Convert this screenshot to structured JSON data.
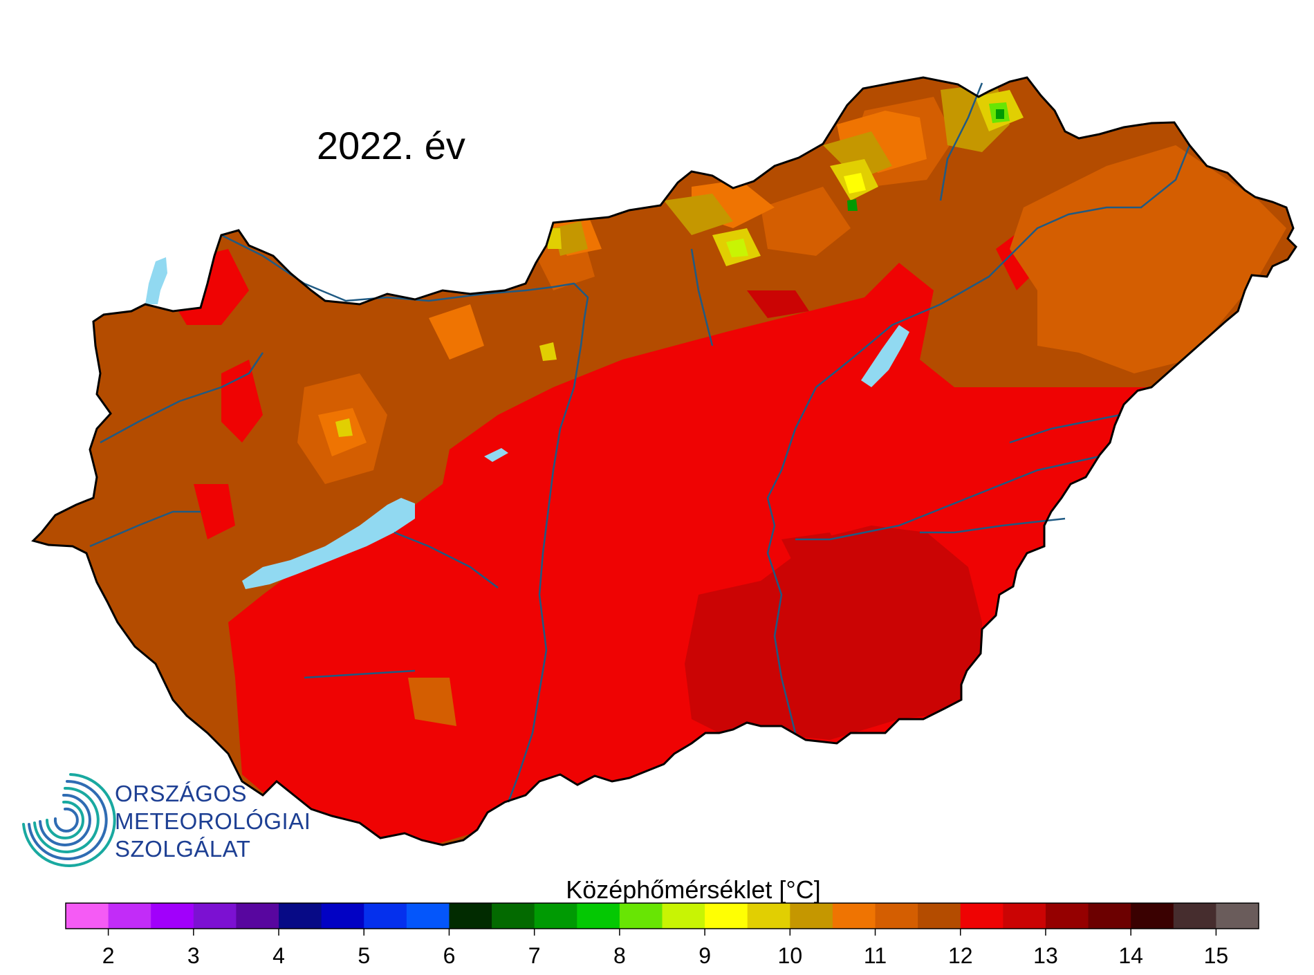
{
  "title": "2022. év",
  "logo": {
    "lines": [
      "ORSZÁGOS",
      "METEOROLÓGIAI",
      "SZOLGÁLAT"
    ],
    "color": "#1d3f93",
    "accent": "#1aa39a"
  },
  "legend": {
    "title": "Középhőmérséklet [°C]",
    "min": 1.5,
    "step": 0.5,
    "colors": [
      "#f55bf5",
      "#c22cf8",
      "#a100fb",
      "#7c11d2",
      "#58069f",
      "#070a86",
      "#0202c4",
      "#0530ed",
      "#0456fb",
      "#012b00",
      "#036a00",
      "#009a03",
      "#04c803",
      "#68e504",
      "#c8f404",
      "#ffff03",
      "#e1cf02",
      "#c59700",
      "#ef7402",
      "#d45e01",
      "#b44c00",
      "#ef0303",
      "#cb0404",
      "#950000",
      "#6c0000",
      "#3a0101",
      "#462d2e",
      "#6a5c5b"
    ],
    "tick_labels": [
      "2",
      "3",
      "4",
      "5",
      "6",
      "7",
      "8",
      "9",
      "10",
      "11",
      "12",
      "13",
      "14",
      "15"
    ]
  },
  "map": {
    "region": "Hungary",
    "lake_color": "#91d9f1",
    "river_color": "#1f5a83",
    "border_color": "#000000"
  }
}
